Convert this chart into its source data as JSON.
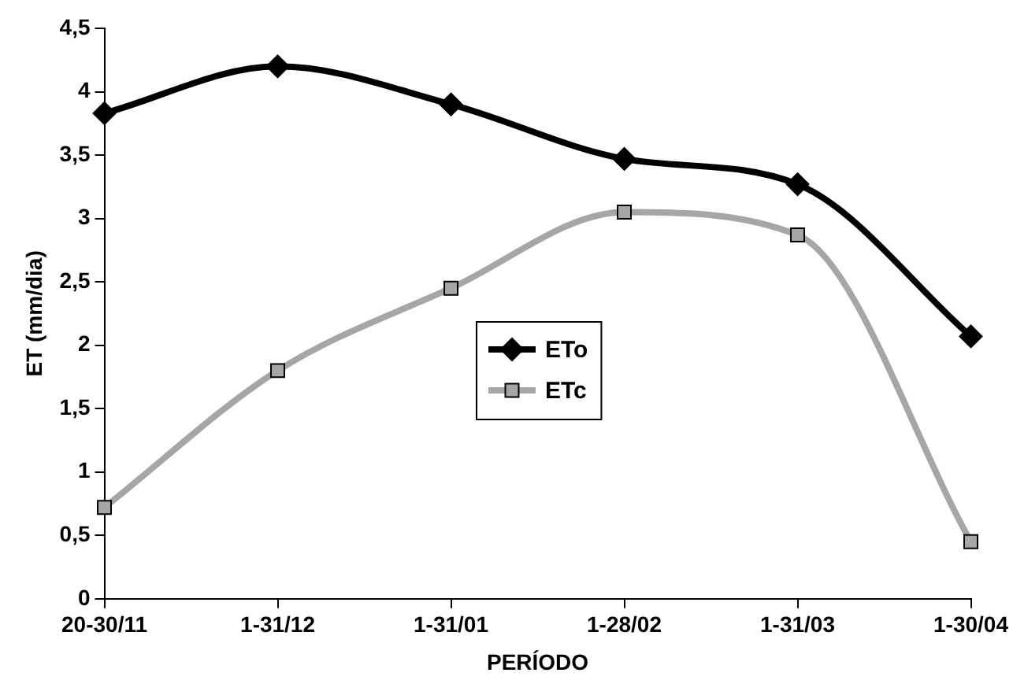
{
  "chart_data": {
    "type": "line",
    "xlabel": "PERÍODO",
    "ylabel": "ET (mm/dia)",
    "categories": [
      "20-30/11",
      "1-31/12",
      "1-31/01",
      "1-28/02",
      "1-31/03",
      "1-30/04"
    ],
    "series": [
      {
        "name": "ETo",
        "color": "#000000",
        "marker": "diamond",
        "values": [
          3.83,
          4.2,
          3.9,
          3.47,
          3.27,
          2.07
        ]
      },
      {
        "name": "ETc",
        "color": "#a6a6a6",
        "marker": "square",
        "values": [
          0.72,
          1.8,
          2.45,
          3.05,
          2.87,
          0.45
        ]
      }
    ],
    "ylim": [
      0,
      4.5
    ],
    "yticks": [
      0,
      {
        "value": 0.5,
        "label": "0,5"
      },
      1,
      {
        "value": 1.5,
        "label": "1,5"
      },
      2,
      {
        "value": 2.5,
        "label": "2,5"
      },
      3,
      {
        "value": 3.5,
        "label": "3,5"
      },
      4,
      {
        "value": 4.5,
        "label": "4,5"
      }
    ],
    "grid": false,
    "legend": "center"
  }
}
